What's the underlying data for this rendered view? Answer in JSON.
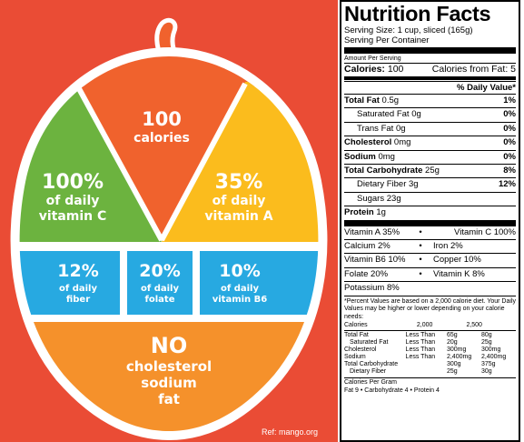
{
  "infographic": {
    "calories_value": "100",
    "calories_label": "calories",
    "vitc_value": "100%",
    "vitc_line1": "of daily",
    "vitc_line2": "vitamin C",
    "vita_value": "35%",
    "vita_line1": "of daily",
    "vita_line2": "vitamin A",
    "fiber_value": "12%",
    "fiber_line1": "of daily",
    "fiber_line2": "fiber",
    "folate_value": "20%",
    "folate_line1": "of daily",
    "folate_line2": "folate",
    "b6_value": "10%",
    "b6_line1": "of daily",
    "b6_line2": "vitamin B6",
    "no_title": "NO",
    "no_line1": "cholesterol",
    "no_line2": "sodium",
    "no_line3": "fat",
    "ref": "Ref: mango.org",
    "colors": {
      "background": "#ea4c35",
      "top_orange": "#f0622d",
      "green": "#6cb33f",
      "yellow": "#fbbc1d",
      "blue": "#27a9e1",
      "bottom_orange": "#f5912b",
      "outline": "#ffffff"
    }
  },
  "label": {
    "title": "Nutrition Facts",
    "serving_size": "Serving Size: 1 cup, sliced (165g)",
    "serving_per_container": "Serving Per Container",
    "amount_per_serving": "Amount Per Serving",
    "calories_label": "Calories:",
    "calories_value": "100",
    "calories_fat_label": "Calories from Fat:",
    "calories_fat_value": "5",
    "dv_header": "% Daily Value*",
    "rows": {
      "total_fat": {
        "label": "Total Fat",
        "amount": "0.5g",
        "dv": "1%"
      },
      "sat_fat": {
        "label": "Saturated Fat",
        "amount": "0g",
        "dv": "0%"
      },
      "trans_fat": {
        "label": "Trans Fat",
        "amount": "0g",
        "dv": "0%"
      },
      "cholesterol": {
        "label": "Cholesterol",
        "amount": "0mg",
        "dv": "0%"
      },
      "sodium": {
        "label": "Sodium",
        "amount": "0mg",
        "dv": "0%"
      },
      "carb": {
        "label": "Total Carbohydrate",
        "amount": "25g",
        "dv": "8%"
      },
      "fiber": {
        "label": "Dietary Fiber",
        "amount": "3g",
        "dv": "12%"
      },
      "sugars": {
        "label": "Sugars",
        "amount": "23g"
      },
      "protein": {
        "label": "Protein",
        "amount": "1g"
      }
    },
    "vitamins": {
      "vita": "Vitamin A 35%",
      "vitc": "Vitamin C 100%",
      "calcium": "Calcium 2%",
      "iron": "Iron 2%",
      "vitb6": "Vitamin B6 10%",
      "copper": "Copper 10%",
      "folate": "Folate 20%",
      "vitk": "Vitamin K 8%",
      "potassium": "Potassium 8%",
      "dot": "•"
    },
    "footnote": "*Percent Values are based on a 2,000 calorie diet. Your Daily Values may be higher or lower depending on your calorie needs:",
    "dv_table": {
      "head": {
        "calories": "Calories",
        "c2000": "2,000",
        "c2500": "2,500"
      },
      "rows": [
        {
          "name": "Total Fat",
          "limit": "Less Than",
          "v2000": "65g",
          "v2500": "80g"
        },
        {
          "name": "Saturated Fat",
          "limit": "Less Than",
          "v2000": "20g",
          "v2500": "25g"
        },
        {
          "name": "Cholesterol",
          "limit": "Less Than",
          "v2000": "300mg",
          "v2500": "300mg"
        },
        {
          "name": "Sodium",
          "limit": "Less Than",
          "v2000": "2,400mg",
          "v2500": "2,400mg"
        },
        {
          "name": "Total Carbohydrate",
          "limit": "",
          "v2000": "300g",
          "v2500": "375g"
        },
        {
          "name": "Dietary Fiber",
          "limit": "",
          "v2000": "25g",
          "v2500": "30g"
        }
      ]
    },
    "calories_per_gram": "Calories Per Gram",
    "calories_per_gram_values": "Fat 9  •  Carbohydrate 4  •  Protein  4"
  }
}
